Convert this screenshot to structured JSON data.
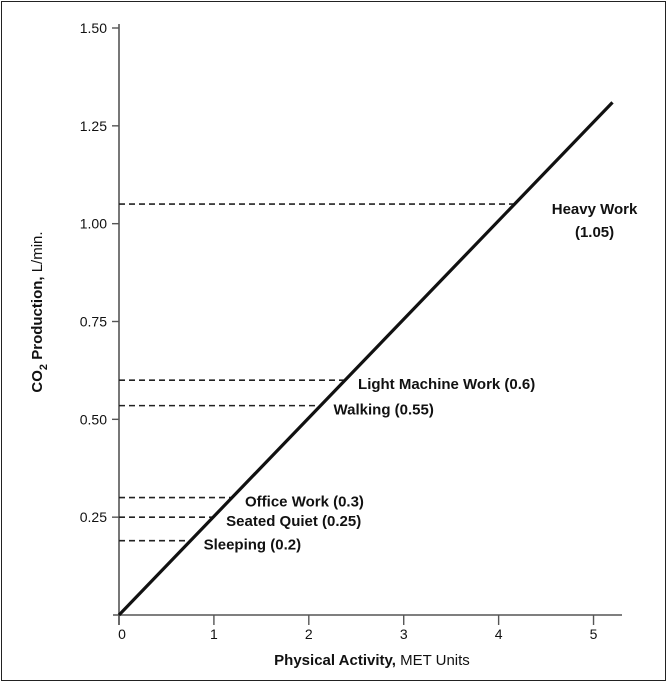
{
  "chart_data": {
    "type": "line",
    "xlabel_bold": "Physical Activity,",
    "xlabel_unit": " MET Units",
    "ylabel_bold_pre": "CO",
    "ylabel_sub": "2",
    "ylabel_bold_post": " Production,",
    "ylabel_unit": " L/min.",
    "xlim": [
      0,
      5.3
    ],
    "ylim": [
      0,
      1.5
    ],
    "x_ticks": [
      "0",
      "1",
      "2",
      "3",
      "4",
      "5"
    ],
    "y_ticks": [
      "0.25",
      "0.50",
      "0.75",
      "1.00",
      "1.25",
      "1.50"
    ],
    "series": [
      {
        "x": [
          0,
          5.2
        ],
        "y": [
          0,
          1.31
        ]
      }
    ],
    "annotations": [
      {
        "line1": "Heavy Work",
        "line2": "(1.05)",
        "y": 1.05
      },
      {
        "line1": "Light Machine Work (0.6)",
        "y": 0.6
      },
      {
        "line1": "Walking (0.55)",
        "y": 0.535
      },
      {
        "line1": "Office Work (0.3)",
        "y": 0.3
      },
      {
        "line1": "Seated Quiet (0.25)",
        "y": 0.25
      },
      {
        "line1": "Sleeping (0.2)",
        "y": 0.19
      }
    ]
  }
}
